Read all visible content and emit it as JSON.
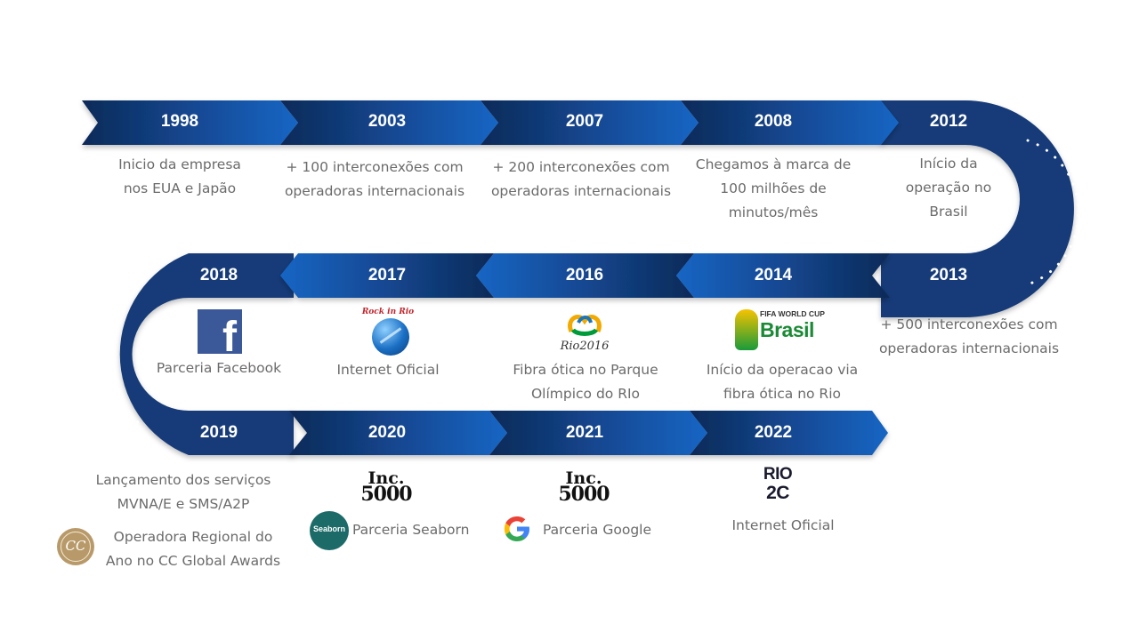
{
  "years": {
    "y1998": "1998",
    "y2003": "2003",
    "y2007": "2007",
    "y2008": "2008",
    "y2012": "2012",
    "y2018": "2018",
    "y2017": "2017",
    "y2016": "2016",
    "y2014": "2014",
    "y2013": "2013",
    "y2019": "2019",
    "y2020": "2020",
    "y2021": "2021",
    "y2022": "2022"
  },
  "events": {
    "e1998": [
      "Inicio da empresa",
      "nos EUA e Japão"
    ],
    "e2003": [
      "+ 100 interconexões com",
      "operadoras internacionais"
    ],
    "e2007": [
      "+ 200 interconexões com",
      "operadoras internacionais"
    ],
    "e2008": [
      "Chegamos à marca de",
      "100 milhões de",
      "minutos/mês"
    ],
    "e2012": [
      "Início da",
      "operação no",
      "Brasil"
    ],
    "e2013": [
      "+ 500 interconexões com",
      "operadoras internacionais"
    ],
    "e2014": [
      "Início da operacao via",
      "fibra ótica no Rio"
    ],
    "e2016": [
      "Fibra ótica no Parque",
      "Olímpico do RIo"
    ],
    "e2017": [
      "Internet Oficial"
    ],
    "e2018": [
      "Parceria Facebook"
    ],
    "e2019a": [
      "Lançamento dos serviços",
      "MVNA/E e SMS/A2P"
    ],
    "e2019b": [
      "Operadora Regional do",
      "Ano no CC Global Awards"
    ],
    "e2020": [
      "Parceria Seaborn"
    ],
    "e2021": [
      "Parceria Google"
    ],
    "e2022": [
      "Internet Oficial"
    ]
  },
  "logos": {
    "facebook": "f",
    "rockinrio": "Rock in Rio",
    "rio2016": "Rio2016",
    "fifa_top": "FIFA WORLD CUP",
    "fifa_bottom": "Brasil",
    "inc_top": "Inc.",
    "inc_bottom": "5000",
    "seaborn": "Seaborn",
    "google": "G",
    "rio2c_top": "RIO",
    "rio2c_bottom": "2C",
    "ccga": "CC"
  },
  "colors": {
    "road_dark": "#0f2d5e",
    "road_light": "#1560b8",
    "text_gray": "#6b6b6b"
  }
}
